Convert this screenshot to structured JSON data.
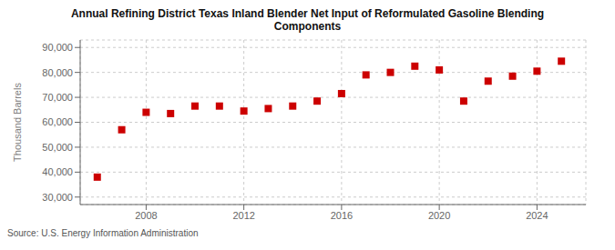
{
  "chart_data": {
    "type": "scatter",
    "title": "Annual Refining District Texas Inland Blender Net Input of Reformulated Gasoline Blending\nComponents",
    "ylabel": "Thousand Barrels",
    "annotation": "Source: U.S. Energy Information Administration",
    "x": [
      2006,
      2007,
      2008,
      2009,
      2010,
      2011,
      2012,
      2013,
      2014,
      2015,
      2016,
      2017,
      2018,
      2019,
      2020,
      2021,
      2022,
      2023,
      2024,
      2025
    ],
    "values": [
      38000,
      57000,
      64000,
      63500,
      66500,
      66500,
      64500,
      65500,
      66500,
      68500,
      71500,
      79000,
      80000,
      82500,
      81000,
      68500,
      76500,
      78500,
      80500,
      84500
    ],
    "color": "#cc0000",
    "marker": "square",
    "xlim": [
      2005.3,
      2026.0
    ],
    "xticks": [
      2008,
      2012,
      2016,
      2020,
      2024
    ],
    "ylim": [
      27000,
      93000
    ],
    "yticks": [
      {
        "value": 30000,
        "label": "30,000"
      },
      {
        "value": 40000,
        "label": "40,000"
      },
      {
        "value": 50000,
        "label": "50,000"
      },
      {
        "value": 60000,
        "label": "60,000"
      },
      {
        "value": 70000,
        "label": "70,000"
      },
      {
        "value": 80000,
        "label": "80,000"
      },
      {
        "value": 90000,
        "label": "90,000"
      }
    ],
    "grid": true
  }
}
